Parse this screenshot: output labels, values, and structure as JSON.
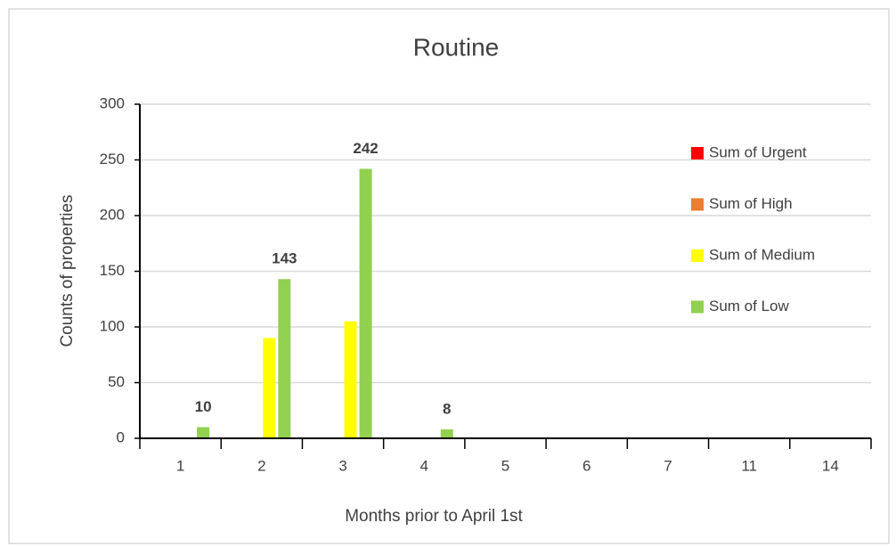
{
  "chart_data": {
    "type": "bar",
    "title": "Routine",
    "x_label": "Months prior to April 1st",
    "y_label": "Counts of properties",
    "categories": [
      "1",
      "2",
      "3",
      "4",
      "5",
      "6",
      "7",
      "11",
      "14"
    ],
    "series": [
      {
        "name": "Sum of Urgent",
        "color": "#ff0000",
        "values": [
          0,
          0,
          0,
          0,
          0,
          0,
          0,
          0,
          0
        ]
      },
      {
        "name": "Sum of High",
        "color": "#ed7d31",
        "values": [
          0,
          0,
          0,
          0,
          0,
          0,
          0,
          0,
          0
        ]
      },
      {
        "name": "Sum of Medium",
        "color": "#ffff00",
        "values": [
          0,
          90,
          105,
          0,
          0,
          0,
          0,
          0,
          0
        ]
      },
      {
        "name": "Sum of Low",
        "color": "#92d050",
        "values": [
          10,
          143,
          242,
          8,
          0,
          0,
          0,
          0,
          0
        ],
        "value_labels": [
          "10",
          "143",
          "242",
          "8",
          null,
          null,
          null,
          null,
          null
        ]
      }
    ],
    "ylim": [
      0,
      300
    ],
    "yticks": [
      0,
      50,
      100,
      150,
      200,
      250,
      300
    ],
    "grid": true,
    "legend": "right"
  }
}
